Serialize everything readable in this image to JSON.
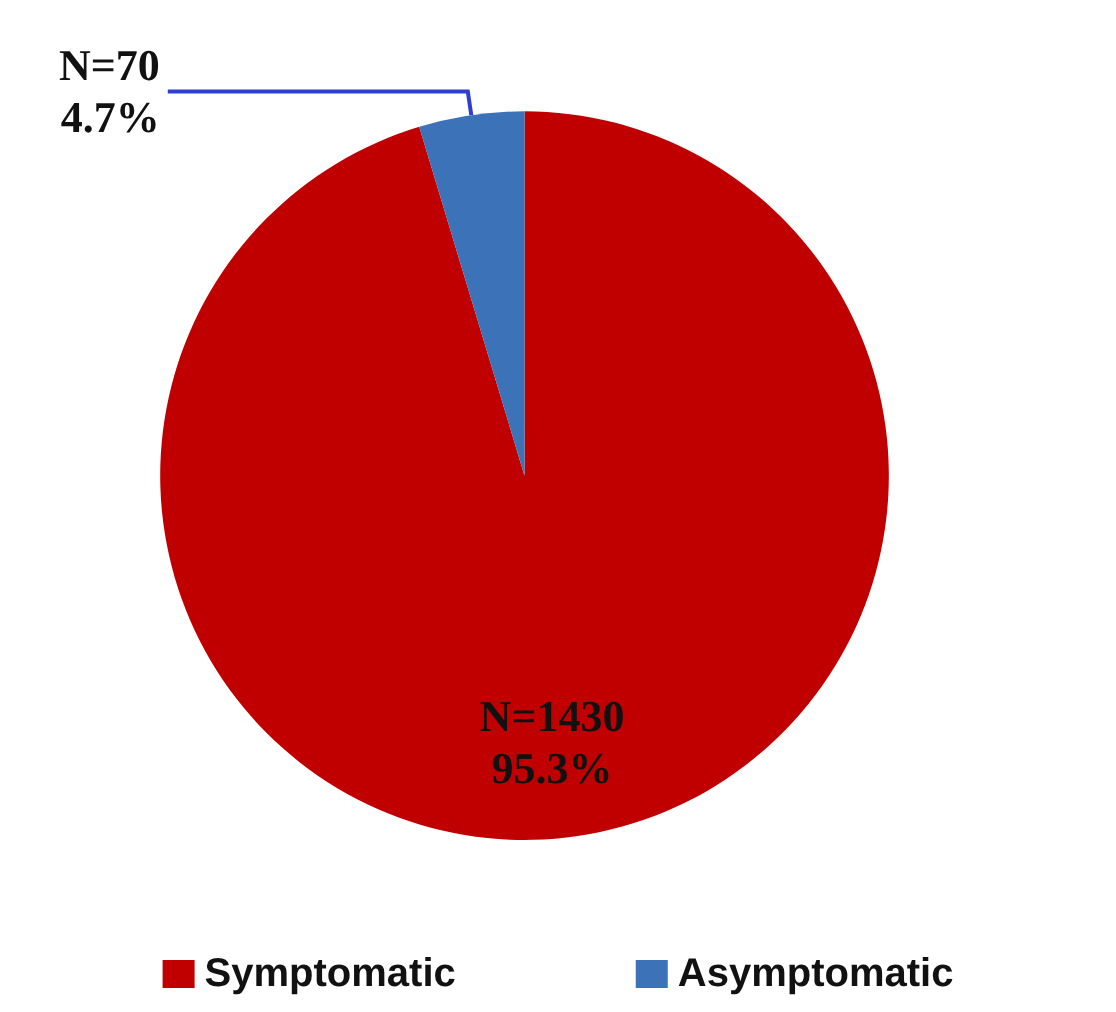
{
  "chart_data": {
    "type": "pie",
    "categories": [
      "Symptomatic",
      "Asymptomatic"
    ],
    "values": [
      1430,
      70
    ],
    "colors": [
      "#c00000",
      "#3b72b8"
    ],
    "value_labels": [
      "N=1430\n95.3%",
      "N=70\n4.7%"
    ],
    "legend": "bottom"
  }
}
